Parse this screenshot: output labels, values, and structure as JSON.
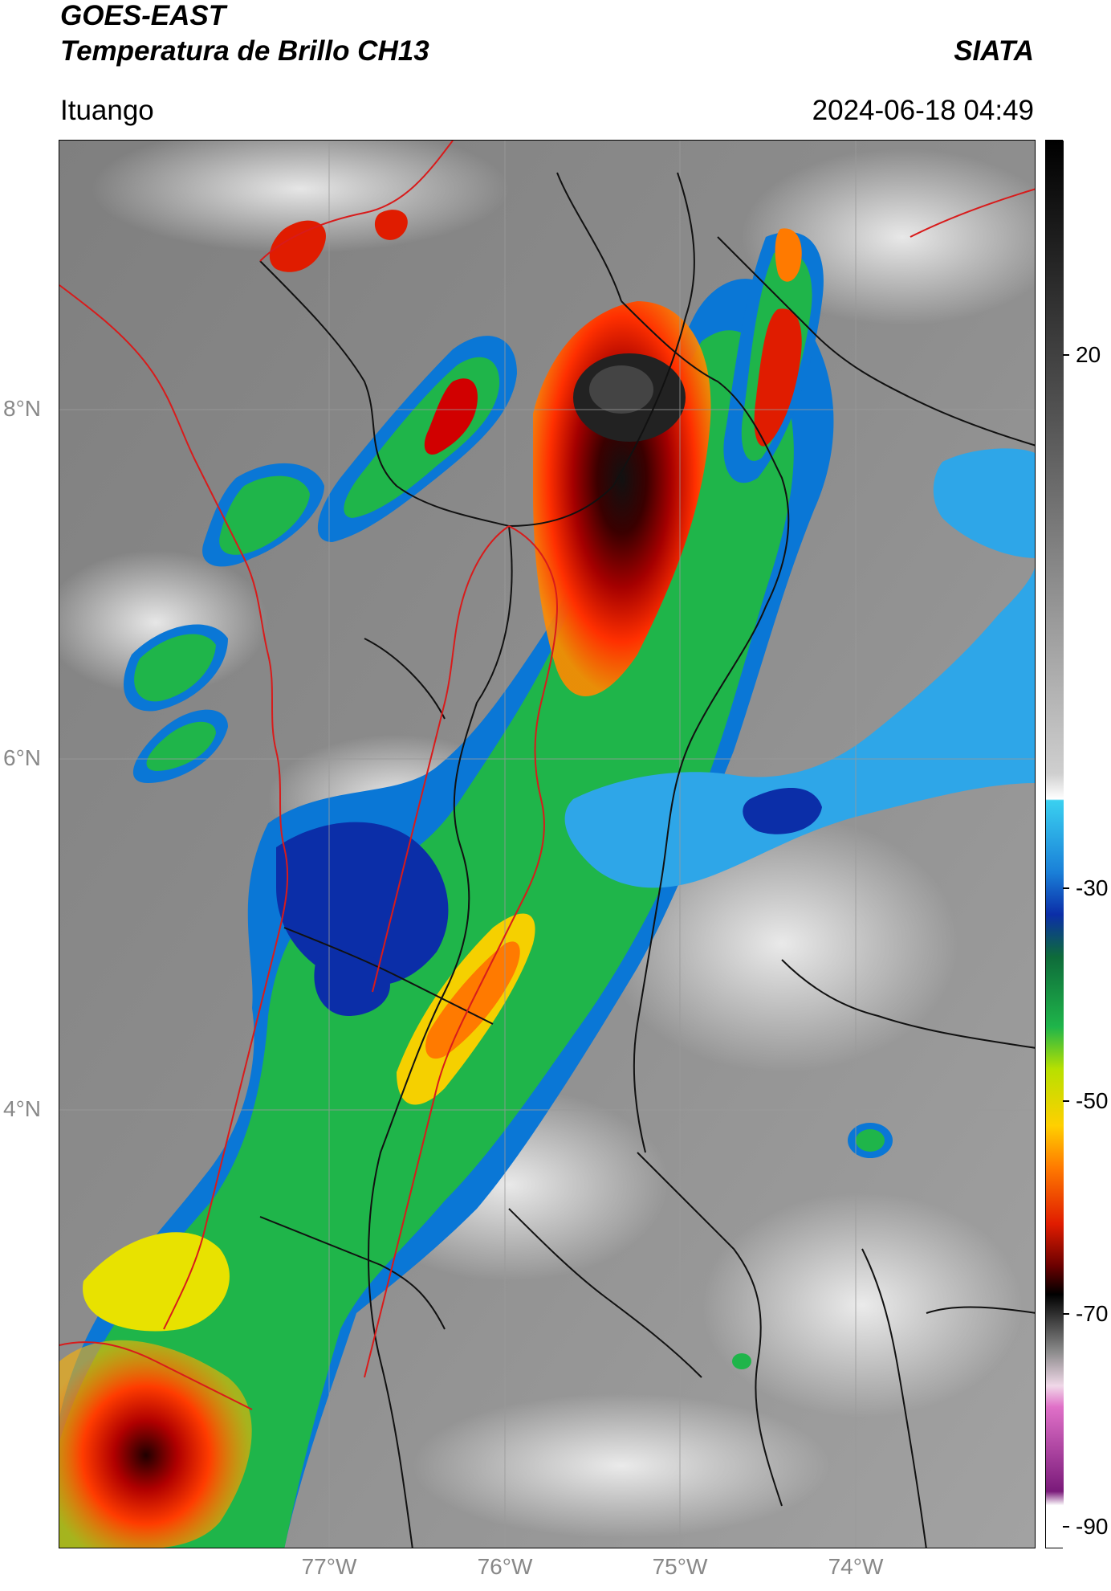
{
  "header": {
    "title_line1": "GOES-EAST",
    "title_line2": "Temperatura de Brillo CH13",
    "brand": "SIATA",
    "location": "Ituango",
    "datetime": "2024-06-18 04:49"
  },
  "axes": {
    "y_labels": [
      "8°N",
      "6°N",
      "4°N"
    ],
    "x_labels": [
      "77°W",
      "76°W",
      "75°W",
      "74°W"
    ]
  },
  "colorbar": {
    "labels": [
      "20",
      "-30",
      "-50",
      "-70",
      "-90"
    ]
  },
  "colors": {
    "coastline": "#d81b1b",
    "borders": "#111111",
    "grid": "#9a9a9a",
    "background_cloud_gray": "#8a8a8a",
    "cold_core": "#1a0000"
  }
}
